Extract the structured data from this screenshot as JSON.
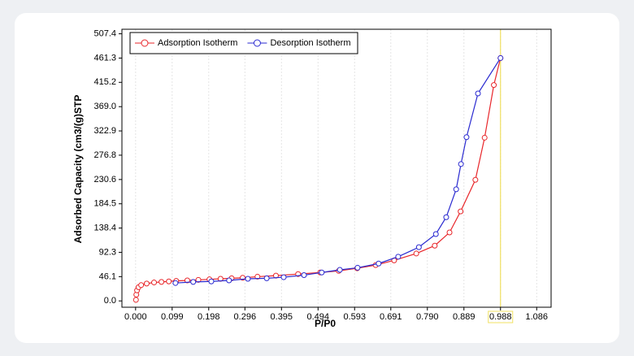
{
  "chart_data": {
    "type": "line",
    "x_label": "P/P0",
    "y_label": "Adsorbed Capacity (cm3/(g)STP",
    "xlim": [
      -0.037,
      1.125
    ],
    "ylim": [
      -12,
      516
    ],
    "xticks": [
      {
        "value": 0,
        "label": "0.000"
      },
      0.099,
      0.198,
      0.296,
      0.395,
      0.494,
      0.593,
      0.691,
      {
        "value": 0.79,
        "label": "0.790"
      },
      0.889,
      0.988,
      1.086
    ],
    "yticks": [
      {
        "value": 0,
        "label": "0.0"
      },
      46.1,
      92.3,
      138.4,
      184.5,
      230.6,
      276.8,
      322.9,
      {
        "value": 369,
        "label": "369.0"
      },
      415.2,
      461.3,
      507.4
    ],
    "grid": "x",
    "legend": "top-left",
    "highlight_x": 0.988,
    "highlight_color": "#f0e060",
    "series": [
      {
        "name": "Adsorption Isotherm",
        "color": "#e8262a",
        "x": [
          0.001,
          0.002,
          0.004,
          0.008,
          0.015,
          0.03,
          0.05,
          0.07,
          0.09,
          0.11,
          0.14,
          0.17,
          0.2,
          0.23,
          0.26,
          0.29,
          0.33,
          0.38,
          0.44,
          0.5,
          0.55,
          0.6,
          0.65,
          0.7,
          0.76,
          0.81,
          0.85,
          0.88,
          0.92,
          0.945,
          0.97,
          0.988
        ],
        "values": [
          2,
          12,
          20,
          26,
          30,
          33,
          35,
          36,
          37,
          38,
          39,
          40,
          41,
          42,
          43,
          44,
          46,
          48,
          51,
          54,
          57,
          62,
          68,
          77,
          90,
          105,
          130,
          170,
          230,
          310,
          410,
          461.3
        ]
      },
      {
        "name": "Desorption Isotherm",
        "color": "#2a2ad0",
        "x": [
          0.988,
          0.927,
          0.896,
          0.881,
          0.868,
          0.841,
          0.813,
          0.767,
          0.711,
          0.658,
          0.601,
          0.553,
          0.504,
          0.456,
          0.401,
          0.355,
          0.304,
          0.253,
          0.205,
          0.156,
          0.108
        ],
        "values": [
          461.3,
          394,
          311,
          260,
          212,
          159,
          127,
          102,
          84,
          71,
          63,
          59,
          54,
          49,
          45,
          43,
          42,
          39,
          37,
          36,
          34
        ]
      }
    ]
  }
}
